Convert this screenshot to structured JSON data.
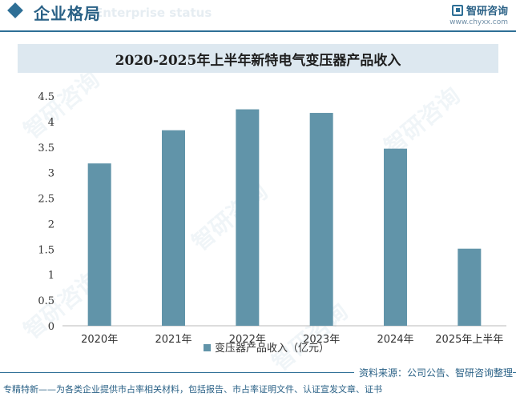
{
  "header": {
    "section_title": "企业格局",
    "section_subtitle": "Enterprise status",
    "brand_name": "智研咨询",
    "brand_url": "www.chyxx.com"
  },
  "watermark": "智研咨询",
  "chart_data": {
    "type": "bar",
    "title": "2020-2025年上半年新特电气变压器产品收入",
    "categories": [
      "2020年",
      "2021年",
      "2022年",
      "2023年",
      "2024年",
      "2025年上半年"
    ],
    "series": [
      {
        "name": "变压器产品收入（亿元）",
        "values": [
          3.18,
          3.83,
          4.24,
          4.17,
          3.47,
          1.51
        ]
      }
    ],
    "yticks": [
      "0",
      "0.5",
      "1",
      "1.5",
      "2",
      "2.5",
      "3",
      "3.5",
      "4",
      "4.5"
    ],
    "ylim": [
      0,
      4.5
    ],
    "xlabel": "",
    "ylabel": "",
    "legend_position": "bottom-center",
    "colors": {
      "bar": "#6194a9",
      "axis": "#b8b8b8",
      "text": "#333333"
    }
  },
  "footer": {
    "source": "资料来源：公司公告、智研咨询整理",
    "slogan": "专精特新——为各类企业提供市占率相关材料，包括报告、市占率证明文件、认证宣发文章、证书"
  }
}
